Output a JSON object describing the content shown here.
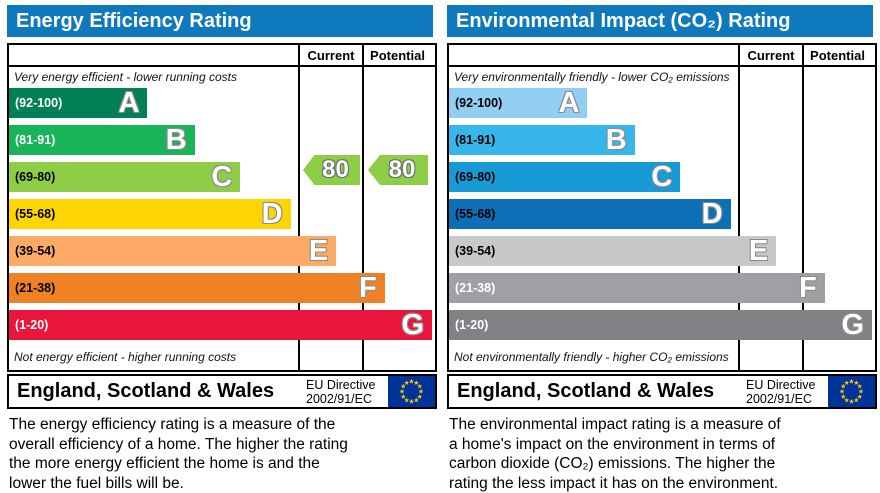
{
  "chart_data": [
    {
      "type": "bar",
      "title": "Energy Efficiency Rating",
      "categories": [
        "A (92-100)",
        "B (81-91)",
        "C (69-80)",
        "D (55-68)",
        "E (39-54)",
        "F (21-38)",
        "G (1-20)"
      ],
      "values": [
        32.5,
        43.6,
        54.3,
        66.1,
        76.8,
        88.2,
        99.3
      ],
      "value_note": "bar lengths as % of band column width",
      "current_rating": 80,
      "current_band": "C",
      "potential_rating": 80,
      "potential_band": "C",
      "top_note": "Very energy efficient - lower running costs",
      "bottom_note": "Not energy efficient - higher running costs"
    },
    {
      "type": "bar",
      "title": "Environmental Impact (CO₂) Rating",
      "categories": [
        "A (92-100)",
        "B (81-91)",
        "C (69-80)",
        "D (55-68)",
        "E (39-54)",
        "F (21-38)",
        "G (1-20)"
      ],
      "values": [
        32.5,
        43.6,
        54.3,
        66.1,
        76.8,
        88.2,
        99.3
      ],
      "value_note": "bar lengths as % of band column width",
      "current_rating": null,
      "potential_rating": null,
      "top_note": "Very environmentally friendly - lower CO₂ emissions",
      "bottom_note": "Not environmentally friendly - higher CO₂ emissions"
    }
  ],
  "panels": [
    {
      "title": "Energy Efficiency Rating",
      "title_bg": "#0f79be",
      "columns": {
        "current": "Current",
        "potential": "Potential"
      },
      "note_top": "Very energy efficient - lower running costs",
      "note_bottom": "Not energy efficient - higher running costs",
      "bands": [
        {
          "letter": "A",
          "range": "(92-100)",
          "color": "#008054",
          "range_color": "#ffffff",
          "width_pct": 32.5
        },
        {
          "letter": "B",
          "range": "(81-91)",
          "color": "#19b459",
          "range_color": "#ffffff",
          "width_pct": 43.6
        },
        {
          "letter": "C",
          "range": "(69-80)",
          "color": "#8dce46",
          "range_color": "#000000",
          "width_pct": 54.3
        },
        {
          "letter": "D",
          "range": "(55-68)",
          "color": "#ffd500",
          "range_color": "#000000",
          "width_pct": 66.1
        },
        {
          "letter": "E",
          "range": "(39-54)",
          "color": "#fcaa65",
          "range_color": "#000000",
          "width_pct": 76.8
        },
        {
          "letter": "F",
          "range": "(21-38)",
          "color": "#ef8023",
          "range_color": "#000000",
          "width_pct": 88.2
        },
        {
          "letter": "G",
          "range": "(1-20)",
          "color": "#e9153b",
          "range_color": "#ffffff",
          "width_pct": 99.3
        }
      ],
      "current": {
        "value": "80",
        "color": "#8dce46"
      },
      "potential": {
        "value": "80",
        "color": "#8dce46"
      },
      "region": "England, Scotland & Wales",
      "directive_line1": "EU Directive",
      "directive_line2": "2002/91/EC",
      "flag_bg": "#003399",
      "flag_star": "#ffcc00",
      "description_lines": [
        "The energy efficiency rating is a measure of the",
        "overall efficiency of a home. The higher the rating",
        "the more energy efficient the home is and the",
        "lower the fuel bills will be."
      ]
    },
    {
      "title": "Environmental Impact (CO₂) Rating",
      "title_bg": "#0f79be",
      "columns": {
        "current": "Current",
        "potential": "Potential"
      },
      "note_top": "Very environmentally friendly - lower CO₂ emissions",
      "note_bottom": "Not environmentally friendly - higher CO₂ emissions",
      "bands": [
        {
          "letter": "A",
          "range": "(92-100)",
          "color": "#92cef2",
          "range_color": "#000000",
          "width_pct": 32.5
        },
        {
          "letter": "B",
          "range": "(81-91)",
          "color": "#36b6ea",
          "range_color": "#000000",
          "width_pct": 43.6
        },
        {
          "letter": "C",
          "range": "(69-80)",
          "color": "#189ad7",
          "range_color": "#000000",
          "width_pct": 54.3
        },
        {
          "letter": "D",
          "range": "(55-68)",
          "color": "#0d70b6",
          "range_color": "#000000",
          "width_pct": 66.1
        },
        {
          "letter": "E",
          "range": "(39-54)",
          "color": "#c7c8ca",
          "range_color": "#000000",
          "width_pct": 76.8
        },
        {
          "letter": "F",
          "range": "(21-38)",
          "color": "#9ea0a3",
          "range_color": "#ffffff",
          "width_pct": 88.2
        },
        {
          "letter": "G",
          "range": "(1-20)",
          "color": "#808285",
          "range_color": "#ffffff",
          "width_pct": 99.3
        }
      ],
      "region": "England, Scotland & Wales",
      "directive_line1": "EU Directive",
      "directive_line2": "2002/91/EC",
      "flag_bg": "#003399",
      "flag_star": "#ffcc00",
      "description_lines": [
        "The environmental impact rating is a measure of",
        "a home's impact on the environment in terms of",
        "carbon dioxide (CO₂) emissions. The higher the",
        "rating the less impact it has on the environment."
      ]
    }
  ]
}
